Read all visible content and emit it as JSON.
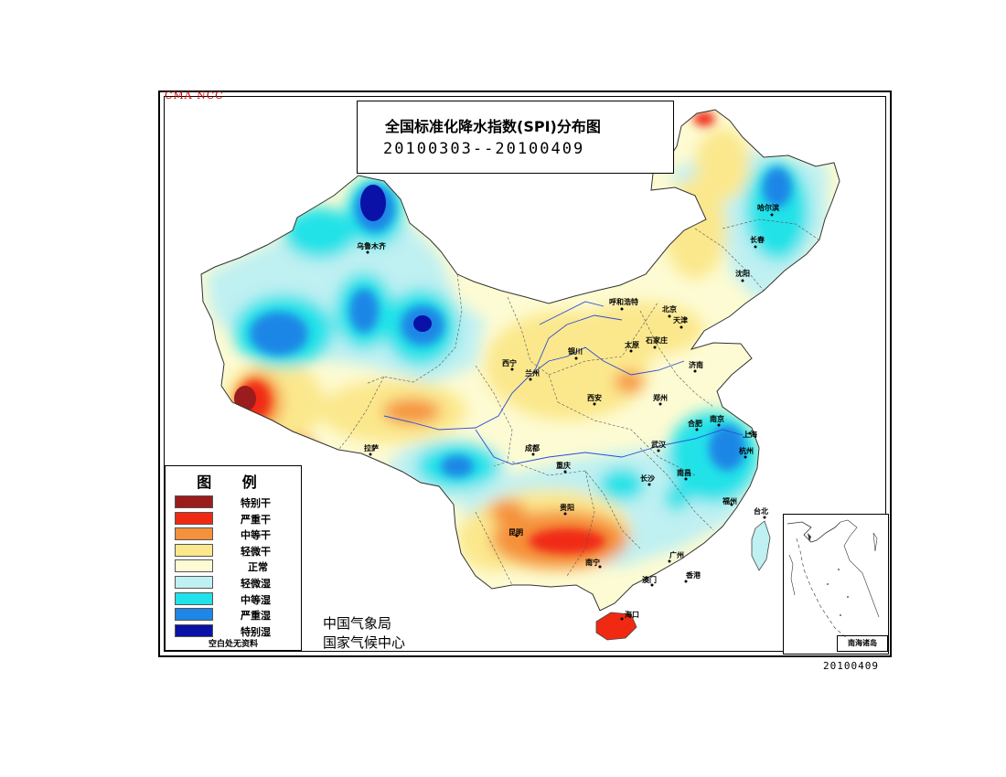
{
  "header": {
    "watermark": "CMA NCC",
    "title": "全国标准化降水指数(SPI)分布图",
    "period": "20100303--20100409"
  },
  "legend": {
    "title": "图 例",
    "items": [
      {
        "label": "特别干",
        "color": "#9b1c1c"
      },
      {
        "label": "严重干",
        "color": "#f02a12"
      },
      {
        "label": "中等干",
        "color": "#f5913b"
      },
      {
        "label": "轻微干",
        "color": "#fbe88d"
      },
      {
        "label": "正常",
        "color": "#fdfbd3"
      },
      {
        "label": "轻微湿",
        "color": "#bff0f2"
      },
      {
        "label": "中等湿",
        "color": "#20e2e8"
      },
      {
        "label": "严重湿",
        "color": "#1e86e6"
      },
      {
        "label": "特别湿",
        "color": "#0a11a6"
      }
    ],
    "note": "空白处无资料"
  },
  "agency": {
    "line1": "中国气象局",
    "line2": "国家气候中心"
  },
  "inset": {
    "label": "南海诸岛"
  },
  "footer": {
    "date": "20100409"
  },
  "cities": [
    {
      "name": "乌鲁木齐"
    },
    {
      "name": "哈尔滨"
    },
    {
      "name": "长春"
    },
    {
      "name": "沈阳"
    },
    {
      "name": "呼和浩特"
    },
    {
      "name": "北京"
    },
    {
      "name": "天津"
    },
    {
      "name": "太原"
    },
    {
      "name": "石家庄"
    },
    {
      "name": "银川"
    },
    {
      "name": "西宁"
    },
    {
      "name": "兰州"
    },
    {
      "name": "济南"
    },
    {
      "name": "西安"
    },
    {
      "name": "郑州"
    },
    {
      "name": "合肥"
    },
    {
      "name": "南京"
    },
    {
      "name": "上海"
    },
    {
      "name": "拉萨"
    },
    {
      "name": "成都"
    },
    {
      "name": "武汉"
    },
    {
      "name": "杭州"
    },
    {
      "name": "重庆"
    },
    {
      "name": "长沙"
    },
    {
      "name": "南昌"
    },
    {
      "name": "福州"
    },
    {
      "name": "贵阳"
    },
    {
      "name": "台北"
    },
    {
      "name": "昆明"
    },
    {
      "name": "南宁"
    },
    {
      "name": "广州"
    },
    {
      "name": "澳门"
    },
    {
      "name": "香港"
    },
    {
      "name": "海口"
    }
  ]
}
